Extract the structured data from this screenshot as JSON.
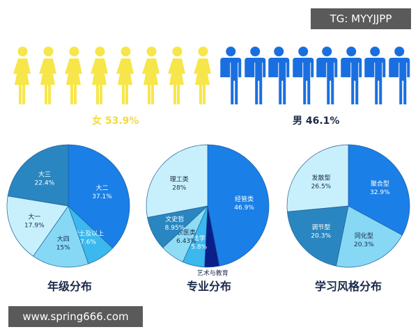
{
  "watermark_top": "TG: MYYJJPP",
  "watermark_bottom": "www.spring666.com",
  "gender": {
    "female_label": "女",
    "female_pct": "53.9%",
    "male_label": "男",
    "male_pct": "46.1%",
    "female_color": "#f7e64a",
    "male_color": "#1a6fe0",
    "female_icons": 8,
    "male_icons": 8
  },
  "chart_data": [
    {
      "type": "pie",
      "title": "年级分布",
      "slices": [
        {
          "label": "大二",
          "value": 37.1,
          "text": "37.1%",
          "color": "#1a7fe6"
        },
        {
          "label": "硕士及以上",
          "value": 7.6,
          "text": "7.6%",
          "color": "#3bb8ee"
        },
        {
          "label": "大四",
          "value": 15,
          "text": "15%",
          "color": "#86d8f5"
        },
        {
          "label": "大一",
          "value": 17.9,
          "text": "17.9%",
          "color": "#c8f0fc"
        },
        {
          "label": "大三",
          "value": 22.4,
          "text": "22.4%",
          "color": "#2a86c0"
        }
      ]
    },
    {
      "type": "pie",
      "title": "专业分布",
      "slices": [
        {
          "label": "经管类",
          "value": 46.9,
          "text": "46.9%",
          "color": "#1a7fe6"
        },
        {
          "label": "艺术与教育",
          "value": 3.91,
          "text": "3.91%",
          "color": "#0a1f8a"
        },
        {
          "label": "法学",
          "value": 5.8,
          "text": "5.8%",
          "color": "#3bb8ee"
        },
        {
          "label": "农医类",
          "value": 6.43,
          "text": "6.43%",
          "color": "#8fdcf5"
        },
        {
          "label": "文史哲",
          "value": 8.95,
          "text": "8.95%",
          "color": "#2a86c0"
        },
        {
          "label": "理工类",
          "value": 28,
          "text": "28%",
          "color": "#c8f0fc"
        }
      ]
    },
    {
      "type": "pie",
      "title": "学习风格分布",
      "slices": [
        {
          "label": "聚合型",
          "value": 32.9,
          "text": "32.9%",
          "color": "#1a7fe6"
        },
        {
          "label": "同化型",
          "value": 20.3,
          "text": "20.3%",
          "color": "#86d8f5"
        },
        {
          "label": "调节型",
          "value": 20.3,
          "text": "20.3%",
          "color": "#2a86c0"
        },
        {
          "label": "发散型",
          "value": 26.5,
          "text": "26.5%",
          "color": "#c8f0fc"
        }
      ]
    }
  ]
}
